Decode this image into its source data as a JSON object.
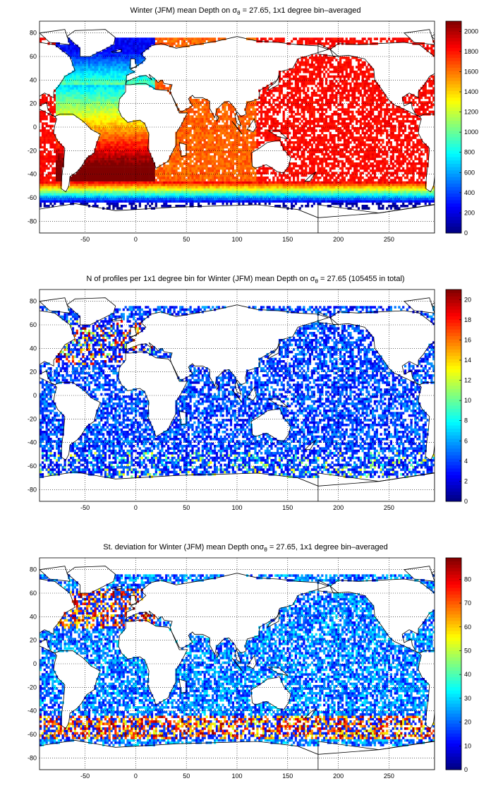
{
  "figure": {
    "colors": {
      "colormap": "jet",
      "land_outline": "#000000",
      "grid": "#000000",
      "background": "#ffffff"
    }
  },
  "chart_data": [
    {
      "type": "heatmap",
      "title": "Winter (JFM) mean Depth on σθ = 27.65, 1x1 degree bin–averaged",
      "title_main": "Winter (JFM) mean Depth on σ",
      "title_sub": "θ",
      "title_rest": " = 27.65, 1x1 degree bin–averaged",
      "xlabel": "",
      "ylabel": "",
      "xlim": [
        -95,
        295
      ],
      "ylim": [
        -90,
        90
      ],
      "xticks": [
        -50,
        0,
        50,
        100,
        150,
        200,
        250
      ],
      "yticks": [
        -80,
        -60,
        -40,
        -20,
        0,
        20,
        40,
        60,
        80
      ],
      "grid": true,
      "colorbar": {
        "range": [
          0,
          2100
        ],
        "ticks": [
          0,
          200,
          400,
          600,
          800,
          1000,
          1200,
          1400,
          1600,
          1800,
          2000
        ]
      },
      "description": "mean depth of the isopycnal; shallow (blue) near Antarctica and the North Atlantic, deep (red) in the Pacific and Indian Ocean"
    },
    {
      "type": "heatmap",
      "title": "N of profiles per 1x1 degree bin for Winter (JFM) mean Depth on σθ = 27.65 (105455 in total)",
      "title_main": "N of profiles per 1x1 degree bin for Winter (JFM) mean Depth on σ",
      "title_sub": "θ",
      "title_rest": " = 27.65 (105455 in total)",
      "xlabel": "",
      "ylabel": "",
      "xlim": [
        -95,
        295
      ],
      "ylim": [
        -90,
        90
      ],
      "xticks": [
        -50,
        0,
        50,
        100,
        150,
        200,
        250
      ],
      "yticks": [
        -80,
        -60,
        -40,
        -20,
        0,
        20,
        40,
        60,
        80
      ],
      "grid": true,
      "colorbar": {
        "range": [
          0,
          21
        ],
        "ticks": [
          0,
          2,
          4,
          6,
          8,
          10,
          12,
          14,
          16,
          18,
          20
        ]
      },
      "total_profiles": 105455
    },
    {
      "type": "heatmap",
      "title": "St. deviation for Winter (JFM) mean Depth onσθ = 27.65, 1x1 degree bin–averaged",
      "title_main": "St. deviation for Winter (JFM) mean Depth onσ",
      "title_sub": "θ",
      "title_rest": " = 27.65, 1x1 degree bin–averaged",
      "xlabel": "",
      "ylabel": "",
      "xlim": [
        -95,
        295
      ],
      "ylim": [
        -90,
        90
      ],
      "xticks": [
        -50,
        0,
        50,
        100,
        150,
        200,
        250
      ],
      "yticks": [
        -80,
        -60,
        -40,
        -20,
        0,
        20,
        40,
        60,
        80
      ],
      "grid": true,
      "colorbar": {
        "range": [
          0,
          89
        ],
        "ticks": [
          0,
          10,
          20,
          30,
          40,
          50,
          60,
          70,
          80
        ]
      }
    }
  ]
}
